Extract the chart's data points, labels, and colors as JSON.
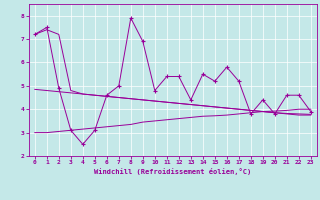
{
  "xlabel": "Windchill (Refroidissement éolien,°C)",
  "background_color": "#c4e8e8",
  "line_color": "#990099",
  "xlim": [
    -0.5,
    23.5
  ],
  "ylim": [
    2.0,
    8.5
  ],
  "yticks": [
    2,
    3,
    4,
    5,
    6,
    7,
    8
  ],
  "xticks": [
    0,
    1,
    2,
    3,
    4,
    5,
    6,
    7,
    8,
    9,
    10,
    11,
    12,
    13,
    14,
    15,
    16,
    17,
    18,
    19,
    20,
    21,
    22,
    23
  ],
  "main_data": [
    7.2,
    7.5,
    4.9,
    3.1,
    2.5,
    3.1,
    4.6,
    5.0,
    7.9,
    6.9,
    4.8,
    5.4,
    5.4,
    4.4,
    5.5,
    5.2,
    5.8,
    5.2,
    3.8,
    4.4,
    3.8,
    4.6,
    4.6,
    3.9
  ],
  "upper_band": [
    7.2,
    7.4,
    7.2,
    4.8,
    4.65,
    4.6,
    4.55,
    4.5,
    4.45,
    4.4,
    4.35,
    4.3,
    4.25,
    4.2,
    4.15,
    4.1,
    4.05,
    4.0,
    3.95,
    3.9,
    3.85,
    3.8,
    3.75,
    3.75
  ],
  "lower_band": [
    3.0,
    3.0,
    3.05,
    3.1,
    3.15,
    3.2,
    3.25,
    3.3,
    3.35,
    3.45,
    3.5,
    3.55,
    3.6,
    3.65,
    3.7,
    3.72,
    3.75,
    3.8,
    3.85,
    3.9,
    3.92,
    3.95,
    4.0,
    4.0
  ],
  "mid_band": [
    4.85,
    4.8,
    4.75,
    4.7,
    4.65,
    4.6,
    4.55,
    4.5,
    4.45,
    4.4,
    4.35,
    4.3,
    4.25,
    4.2,
    4.15,
    4.1,
    4.05,
    4.0,
    3.95,
    3.9,
    3.85,
    3.82,
    3.8,
    3.78
  ]
}
